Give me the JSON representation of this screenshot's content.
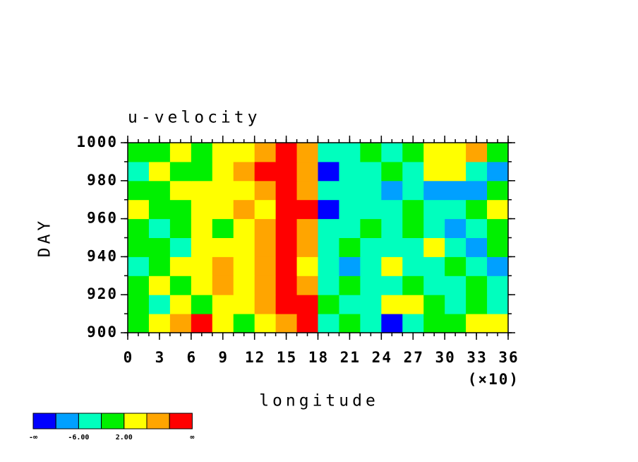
{
  "chart_data": {
    "type": "heatmap",
    "title": "u-velocity",
    "xlabel": "longitude",
    "ylabel": "DAY",
    "x_scale_label": "(×10)",
    "xlim": [
      0,
      360
    ],
    "ylim": [
      900,
      1000
    ],
    "xticks": [
      {
        "value": 0,
        "label": "0"
      },
      {
        "value": 30,
        "label": "3"
      },
      {
        "value": 60,
        "label": "6"
      },
      {
        "value": 90,
        "label": "9"
      },
      {
        "value": 120,
        "label": "12"
      },
      {
        "value": 150,
        "label": "15"
      },
      {
        "value": 180,
        "label": "18"
      },
      {
        "value": 210,
        "label": "21"
      },
      {
        "value": 240,
        "label": "24"
      },
      {
        "value": 270,
        "label": "27"
      },
      {
        "value": 300,
        "label": "30"
      },
      {
        "value": 330,
        "label": "33"
      },
      {
        "value": 360,
        "label": "36"
      }
    ],
    "yticks": [
      900,
      920,
      940,
      960,
      980,
      1000
    ],
    "xminor": 10,
    "yminor": 10,
    "x": [
      10,
      30,
      50,
      70,
      90,
      110,
      130,
      150,
      170,
      190,
      210,
      230,
      250,
      270,
      290,
      310,
      330,
      350
    ],
    "y": [
      905,
      915,
      925,
      935,
      945,
      955,
      965,
      975,
      985,
      995
    ],
    "z": [
      [
        1,
        3,
        7,
        11,
        4,
        1,
        6,
        8,
        12,
        -5,
        0,
        -4,
        -11,
        -3,
        1,
        0,
        3,
        4
      ],
      [
        0,
        -3,
        3,
        1,
        4,
        5,
        7,
        11,
        12,
        0,
        -3,
        -5,
        3,
        4,
        1,
        -3,
        -1,
        -3
      ],
      [
        1,
        3,
        0,
        4,
        8,
        4,
        9,
        11,
        7,
        -4,
        1,
        -3,
        -4,
        0,
        -3,
        -5,
        -1,
        -3
      ],
      [
        -4,
        0,
        3,
        4,
        7,
        5,
        8,
        12,
        4,
        -3,
        -7,
        -4,
        3,
        -5,
        -4,
        -1,
        -3,
        -7
      ],
      [
        1,
        -1,
        -3,
        3,
        6,
        4,
        8,
        13,
        7,
        -4,
        0,
        -3,
        -5,
        -4,
        3,
        -3,
        -7,
        0
      ],
      [
        0,
        -3,
        1,
        3,
        1,
        4,
        8,
        12,
        8,
        -4,
        -3,
        -1,
        -4,
        0,
        -3,
        -7,
        -4,
        0
      ],
      [
        3,
        0,
        1,
        4,
        5,
        7,
        5,
        12,
        11,
        -12,
        -5,
        -4,
        -3,
        0,
        -4,
        -3,
        -1,
        3
      ],
      [
        0,
        1,
        3,
        6,
        4,
        3,
        8,
        12,
        9,
        -3,
        -5,
        -4,
        -6.5,
        -4,
        -7,
        -8,
        -8,
        0
      ],
      [
        -3,
        3,
        0,
        1,
        3,
        7,
        11,
        13,
        9,
        -11,
        -5,
        -4,
        -1,
        -3,
        4,
        6,
        -3,
        -7
      ],
      [
        0,
        1,
        3,
        0,
        4,
        3,
        8,
        12,
        8,
        -4,
        -3,
        -1,
        -3,
        0,
        3,
        4,
        7,
        1
      ]
    ],
    "colorbar": {
      "colors": [
        "#0000ff",
        "#00a0ff",
        "#00ffbe",
        "#00f000",
        "#ffff00",
        "#ffa500",
        "#ff0000"
      ],
      "levels": [
        -10,
        -6,
        -2,
        2,
        6,
        10
      ],
      "labels": [
        {
          "value": -6,
          "label": "-6.00"
        },
        {
          "value": 2,
          "label": "2.00"
        }
      ],
      "low_label": "-∞",
      "high_label": "∞"
    }
  }
}
